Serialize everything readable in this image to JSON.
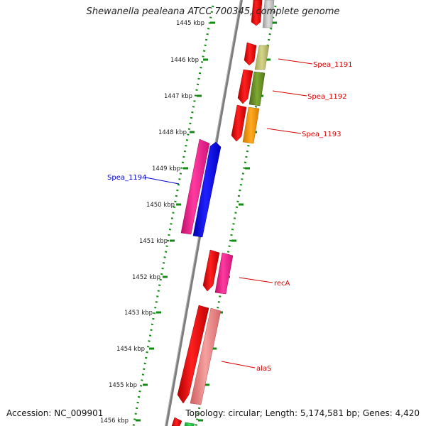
{
  "title": "Shewanella pealeana ATCC 700345, complete genome",
  "accession": "Accession: NC_009901",
  "topology": "Topology: circular; Length: 5,174,581 bp; Genes: 4,420",
  "ticks": [
    "1445 kbp",
    "1446 kbp",
    "1447 kbp",
    "1448 kbp",
    "1449 kbp",
    "1450 kbp",
    "1451 kbp",
    "1452 kbp",
    "1453 kbp",
    "1454 kbp",
    "1455 kbp",
    "1456 kbp"
  ],
  "gene_labels": {
    "spea_1191": "Spea_1191",
    "spea_1192": "Spea_1192",
    "spea_1193": "Spea_1193",
    "spea_1194": "Spea_1194",
    "recA": "recA",
    "alaS": "alaS"
  },
  "colors": {
    "backbone": "#8a8a8a",
    "ticks": "#138a13",
    "label_red": "#d40000",
    "label_blue": "#0000c8",
    "red_gene": "#f00000",
    "magenta_gene": "#ff1a8c",
    "blue_gene": "#0000ff",
    "olive_light": "#c8c87a",
    "olive_dark": "#6b8e23",
    "orange": "#ff9900",
    "salmon": "#f08080",
    "green": "#22cc44",
    "grey": "#bdbdbd"
  }
}
